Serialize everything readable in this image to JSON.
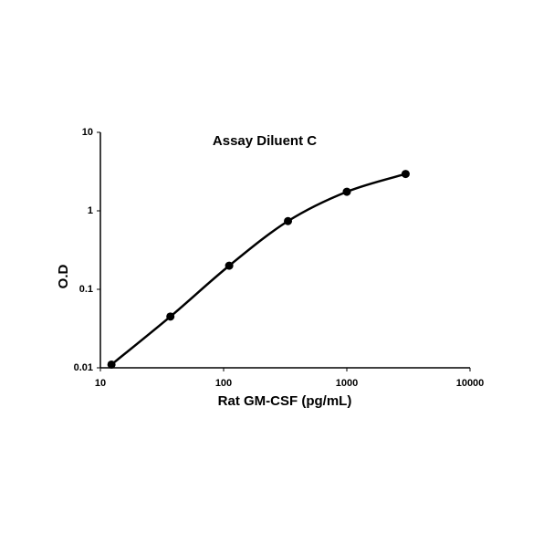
{
  "chart_data": {
    "type": "line",
    "title": "Assay Diluent C",
    "x_label": "Rat GM-CSF (pg/mL)",
    "y_label": "O.D",
    "x": [
      12.3,
      37,
      111,
      333,
      1000,
      3000
    ],
    "series": [
      {
        "name": "Assay Diluent C",
        "color": "#000000",
        "values": [
          0.011,
          0.045,
          0.2,
          0.74,
          1.75,
          2.95
        ]
      }
    ],
    "xlim": [
      10,
      10000
    ],
    "ylim": [
      0.01,
      10
    ],
    "xticks": [
      10,
      100,
      1000,
      10000
    ],
    "yticks": [
      0.01,
      0.1,
      1,
      10
    ],
    "xscale": "log",
    "yscale": "log",
    "grid": false,
    "markers": true,
    "smooth": true
  }
}
